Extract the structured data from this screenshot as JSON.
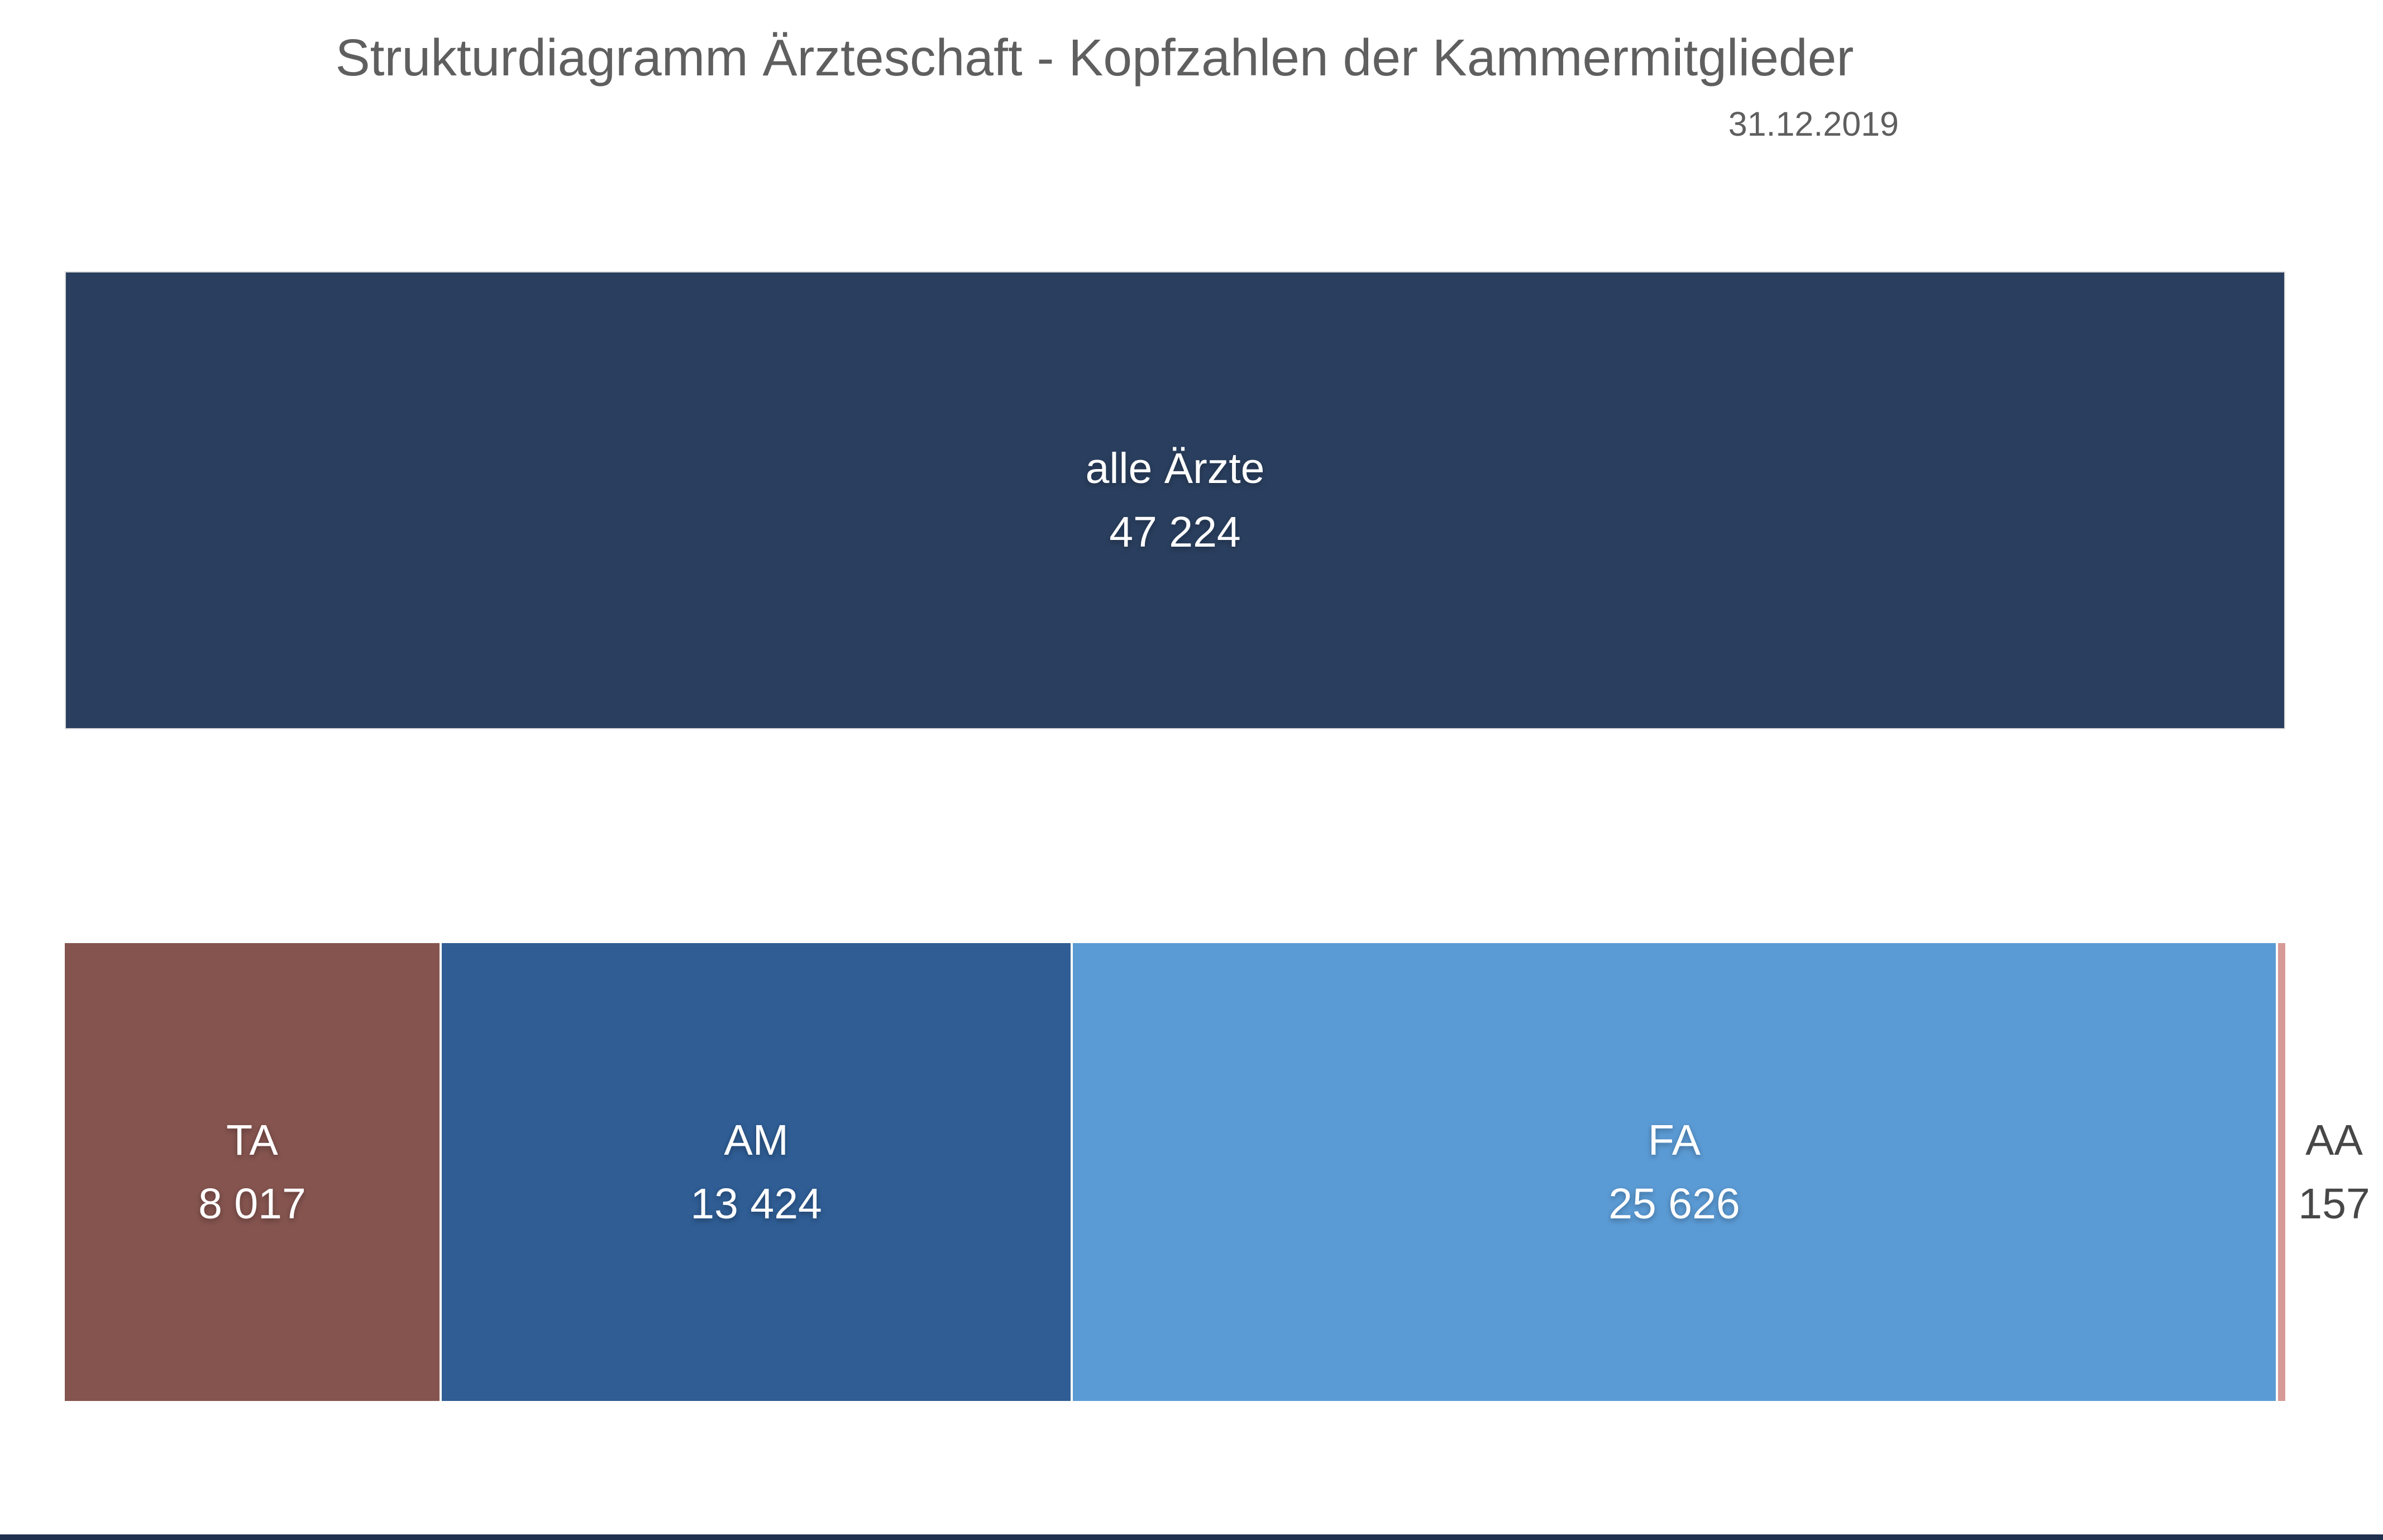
{
  "chart_data": {
    "type": "bar",
    "variant": "stacked-structure-diagram",
    "title": "Strukturdiagramm Ärzteschaft - Kopfzahlen der Kammermitglieder",
    "as_of_date": "31.12.2019",
    "legend": "none",
    "axes": "none",
    "total": {
      "label": "alle Ärzte",
      "value": 47224,
      "display": "47 224",
      "color": "#2A3F5F"
    },
    "segments": [
      {
        "label": "TA",
        "value": 8017,
        "display": "8 017",
        "color": "#85544F",
        "label_position": "inside"
      },
      {
        "label": "AM",
        "value": 13424,
        "display": "13 424",
        "color": "#2F5D94",
        "label_position": "inside"
      },
      {
        "label": "FA",
        "value": 25626,
        "display": "25 626",
        "color": "#5B9BD5",
        "label_position": "inside"
      },
      {
        "label": "AA",
        "value": 157,
        "display": "157",
        "color": "#D89A96",
        "label_position": "outside-right"
      }
    ],
    "style": {
      "title_color": "#5F5F5F",
      "date_color": "#5F5F5F",
      "bar_text_color": "#FFFFFF",
      "outside_label_color": "#474747",
      "separator_color": "#FFFFFF",
      "bar_border_color": "#D9D9D9",
      "bottom_line_color": "#20304F"
    }
  }
}
